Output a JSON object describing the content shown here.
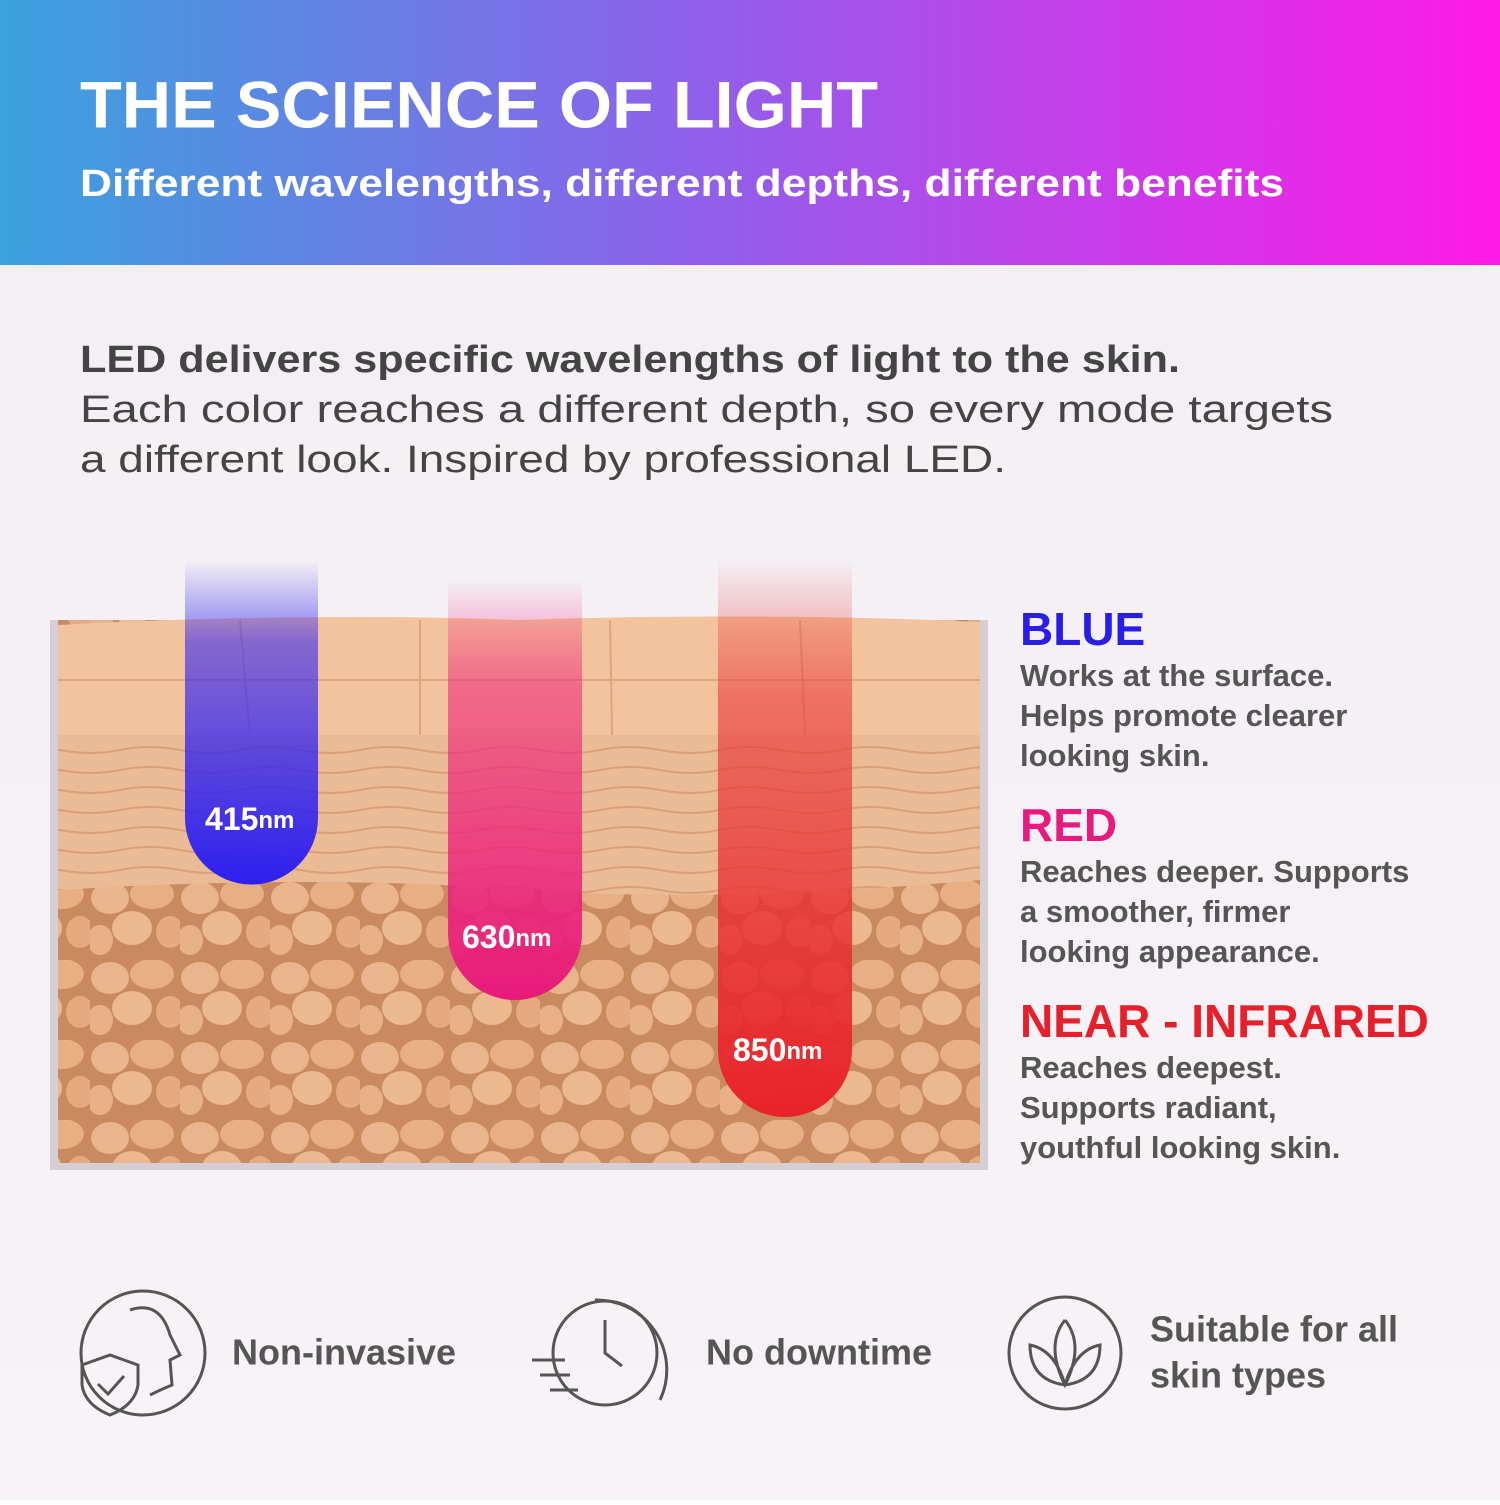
{
  "header": {
    "title": "THE SCIENCE OF LIGHT",
    "subtitle": "Different wavelengths, different depths, different benefits"
  },
  "intro": {
    "lines": [
      "LED delivers specific wavelengths of light to the skin.",
      "Each color reaches a different depth, so every mode targets",
      "a different look. Inspired by professional LED."
    ]
  },
  "diagram": {
    "beams": [
      {
        "value": "415",
        "unit": "nm"
      },
      {
        "value": "630",
        "unit": "nm"
      },
      {
        "value": "850",
        "unit": "nm"
      }
    ]
  },
  "modes": [
    {
      "name": "BLUE",
      "lines": [
        "Works at the surface.",
        "Helps promote clearer",
        "looking skin."
      ]
    },
    {
      "name": "RED",
      "lines": [
        "Reaches deeper. Supports",
        "a smoother, firmer",
        "looking appearance."
      ]
    },
    {
      "name": "NEAR - INFRARED",
      "lines": [
        "Reaches deepest.",
        "Supports radiant,",
        "youthful looking skin."
      ]
    }
  ],
  "features": [
    {
      "lines": [
        "Non-invasive"
      ]
    },
    {
      "lines": [
        "No downtime"
      ]
    },
    {
      "lines": [
        "Suitable for all",
        "skin types"
      ]
    }
  ]
}
